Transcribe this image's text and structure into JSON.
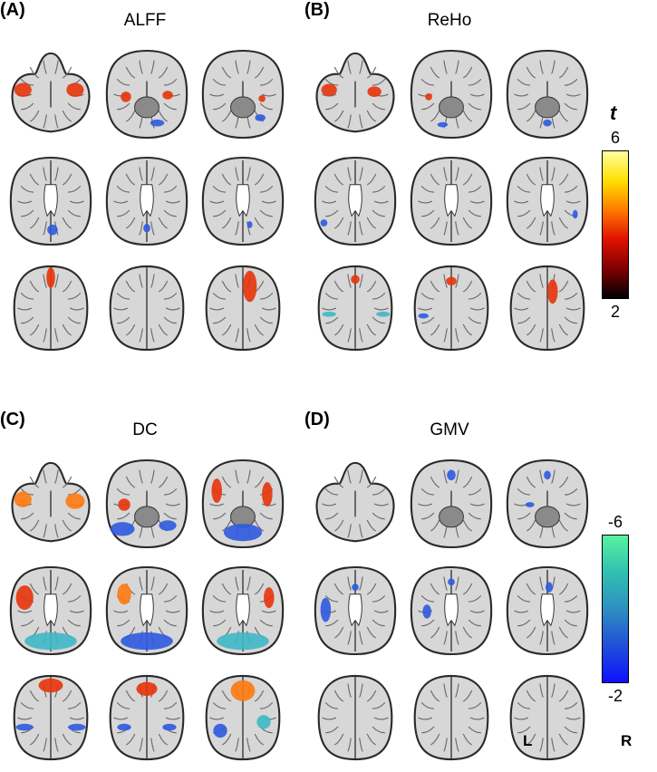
{
  "panels": [
    {
      "letter": "(A)",
      "title": "ALFF"
    },
    {
      "letter": "(B)",
      "title": "ReHo"
    },
    {
      "letter": "(C)",
      "title": "DC"
    },
    {
      "letter": "(D)",
      "title": "GMV"
    }
  ],
  "colorbars": {
    "stat_symbol": "t",
    "positive": {
      "max_label": "6",
      "min_label": "2",
      "colors": [
        "#ffffa0",
        "#ffe000",
        "#ff7a00",
        "#e01000",
        "#800000",
        "#000000"
      ]
    },
    "negative": {
      "max_label": "-6",
      "min_label": "-2",
      "colors": [
        "#58f2a0",
        "#30c0b0",
        "#2e8fc0",
        "#2050d8",
        "#1010ff"
      ]
    }
  },
  "orientation": {
    "left": "L",
    "right": "R"
  }
}
